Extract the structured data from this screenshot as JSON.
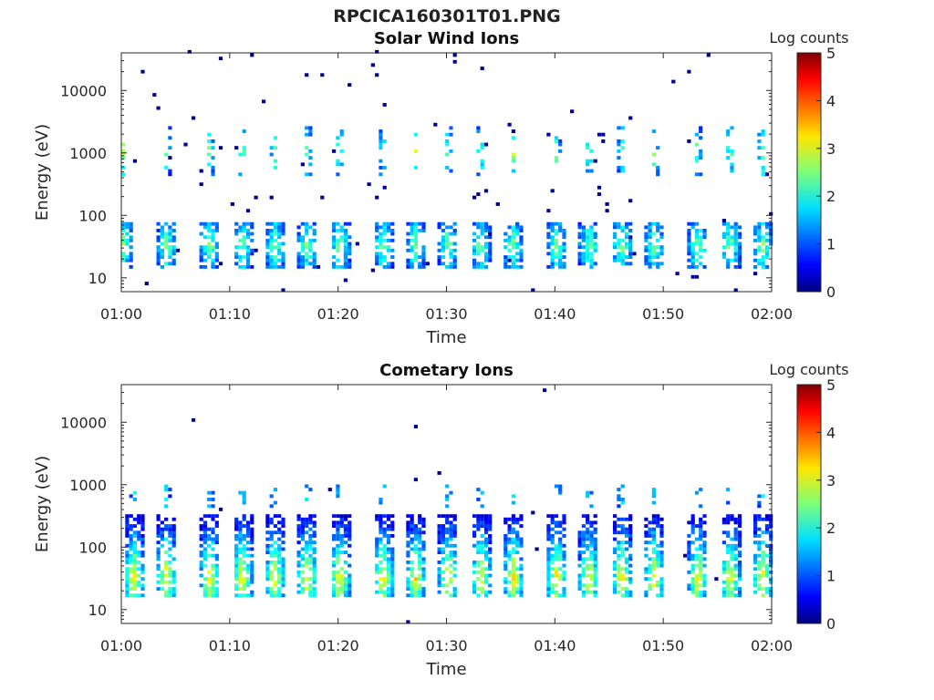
{
  "title": "RPCICA160301T01.PNG",
  "colorbar": {
    "label": "Log counts",
    "ticks": [
      "5",
      "4",
      "3",
      "2",
      "1",
      "0"
    ]
  },
  "chart_data": [
    {
      "type": "heatmap",
      "title": "Solar Wind Ions",
      "xlabel": "Time",
      "ylabel": "Energy (eV)",
      "x_ticks": [
        "01:00",
        "01:10",
        "01:20",
        "01:30",
        "01:40",
        "01:50",
        "02:00"
      ],
      "y_ticks": [
        "10",
        "100",
        "1000",
        "10000"
      ],
      "y_scale": "log",
      "xlim": [
        "01:00",
        "02:00"
      ],
      "ylim": [
        6,
        40000
      ],
      "clim": [
        0,
        5
      ],
      "colormap": "jet",
      "bands": [
        {
          "name": "low-energy",
          "energy_eV": [
            13,
            70
          ],
          "peak_log_counts": 2.3
        },
        {
          "name": "high-energy",
          "energy_eV": [
            400,
            2500
          ],
          "peak_log_counts": 2.5
        }
      ],
      "burst_times": [
        "01:00",
        "01:04",
        "01:08",
        "01:11",
        "01:14",
        "01:17",
        "01:20",
        "01:24",
        "01:27",
        "01:30",
        "01:33",
        "01:36",
        "01:40",
        "01:43",
        "01:46",
        "01:49",
        "01:53",
        "01:56",
        "01:59"
      ]
    },
    {
      "type": "heatmap",
      "title": "Cometary Ions",
      "xlabel": "Time",
      "ylabel": "Energy (eV)",
      "x_ticks": [
        "01:00",
        "01:10",
        "01:20",
        "01:30",
        "01:40",
        "01:50",
        "02:00"
      ],
      "y_ticks": [
        "10",
        "100",
        "1000",
        "10000"
      ],
      "y_scale": "log",
      "xlim": [
        "01:00",
        "02:00"
      ],
      "ylim": [
        6,
        40000
      ],
      "clim": [
        0,
        5
      ],
      "colormap": "jet",
      "bands": [
        {
          "name": "cometary",
          "energy_eV": [
            15,
            300
          ],
          "peak_log_counts": 3.0
        },
        {
          "name": "high-energy",
          "energy_eV": [
            400,
            1000
          ],
          "peak_log_counts": 1.6
        }
      ],
      "burst_times": [
        "01:01",
        "01:04",
        "01:08",
        "01:11",
        "01:14",
        "01:17",
        "01:20",
        "01:24",
        "01:27",
        "01:30",
        "01:33",
        "01:36",
        "01:40",
        "01:43",
        "01:46",
        "01:49",
        "01:53",
        "01:56",
        "01:59"
      ]
    }
  ]
}
